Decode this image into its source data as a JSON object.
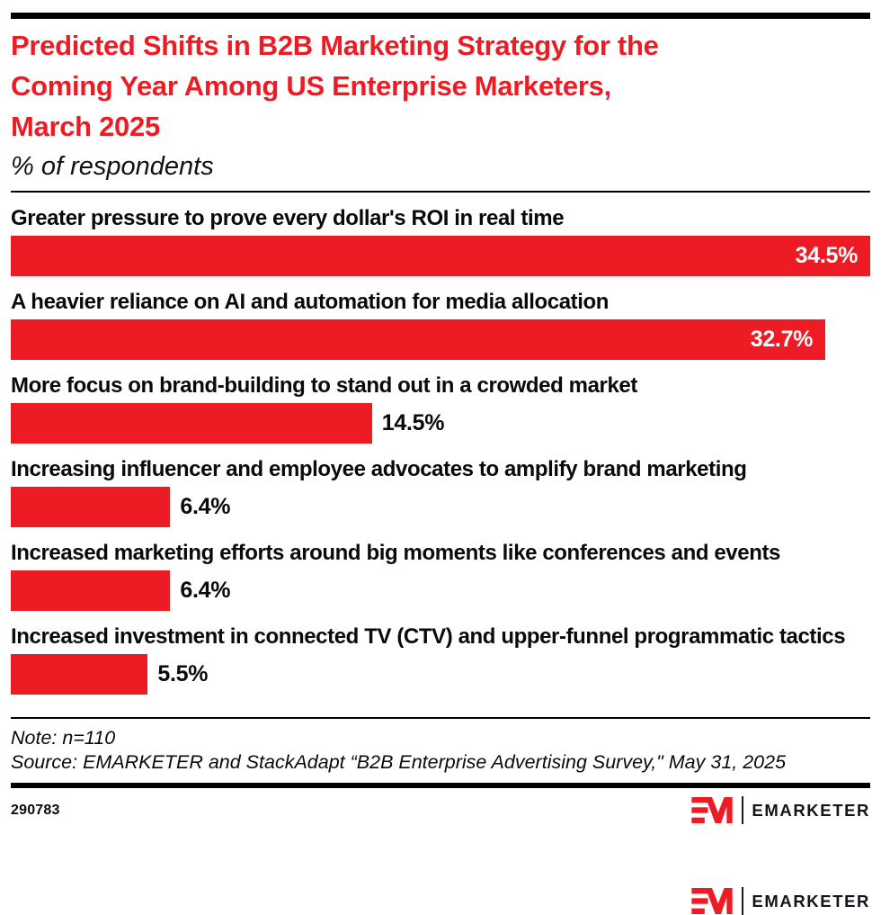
{
  "header": {
    "title": "Predicted Shifts in B2B Marketing Strategy for the Coming Year Among US Enterprise Marketers, March 2025",
    "title_lines": [
      "Predicted Shifts in B2B Marketing Strategy for the",
      "Coming Year Among US Enterprise Marketers,",
      "March 2025"
    ],
    "subtitle": "% of respondents"
  },
  "chart_data": {
    "type": "bar",
    "orientation": "horizontal",
    "title": "Predicted Shifts in B2B Marketing Strategy for the Coming Year Among US Enterprise Marketers, March 2025",
    "subtitle": "% of respondents",
    "unit": "% of respondents",
    "xlim": [
      0,
      34.5
    ],
    "grid": false,
    "legend": false,
    "bar_color": "#ED1C24",
    "categories": [
      "Greater pressure to prove every dollar's ROI in real time",
      "A heavier reliance on AI and automation for media allocation",
      "More focus on brand-building to stand out in a crowded market",
      "Increasing influencer and employee advocates to amplify brand marketing",
      "Increased marketing efforts around big moments like conferences and events",
      "Increased investment in connected TV (CTV) and upper-funnel programmatic tactics"
    ],
    "values": [
      34.5,
      32.7,
      14.5,
      6.4,
      6.4,
      5.5
    ],
    "value_labels": [
      "34.5%",
      "32.7%",
      "14.5%",
      "6.4%",
      "6.4%",
      "5.5%"
    ]
  },
  "footer": {
    "note": "Note: n=110",
    "source": "Source: EMARKETER and StackAdapt “B2B Enterprise Advertising Survey,\" May 31, 2025",
    "chart_id": "290783",
    "logo_text": "EMARKETER"
  },
  "colors": {
    "accent_red": "#ED1C24",
    "text_black": "#0a0a0a",
    "value_white": "#ffffff"
  }
}
